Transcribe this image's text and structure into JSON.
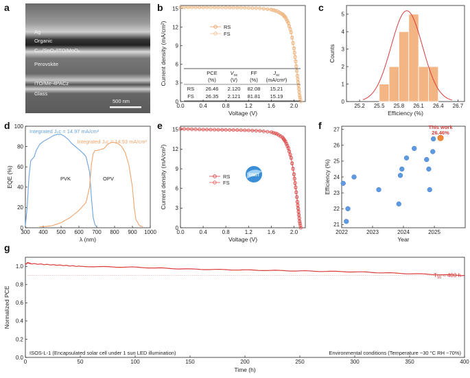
{
  "panels": {
    "a": "a",
    "b": "b",
    "c": "c",
    "d": "d",
    "e": "e",
    "f": "f",
    "g": "g"
  },
  "colors": {
    "orange": "#f0a36a",
    "orange_bar": "#f4b584",
    "red": "#d93a3a",
    "blue": "#6aa3de",
    "blue_dot": "#5f9ae0",
    "orange_dot": "#f08a3a"
  },
  "sem": {
    "layers": [
      "Ag",
      "Organic",
      "C₆₀/SnOₓ/ITO/MoOₓ",
      "Perovskite",
      "ITO/Me-4PACz",
      "Glass"
    ],
    "scale_bar": "500 nm"
  },
  "logo_text": "SIMIT",
  "chart_data": [
    {
      "id": "b",
      "type": "line",
      "xlabel": "Voltage (V)",
      "ylabel": "Current density (mA/cm²)",
      "xlim": [
        0,
        2.2
      ],
      "ylim": [
        0,
        15.5
      ],
      "xticks": [
        0.0,
        0.4,
        0.8,
        1.2,
        1.6,
        2.0
      ],
      "xticklabels": [
        "0.0",
        "0.4",
        "0.8",
        "1.2",
        "1.6",
        "2.0"
      ],
      "yticks": [
        0,
        3,
        6,
        9,
        12,
        15
      ],
      "yticklabels": [
        "0",
        "3",
        "6",
        "9",
        "12",
        "15"
      ],
      "legend_position": "center",
      "series": [
        {
          "name": "RS",
          "marker": "open-circle",
          "x": [
            0,
            0.2,
            0.4,
            0.6,
            0.8,
            1.0,
            1.2,
            1.4,
            1.6,
            1.7,
            1.8,
            1.85,
            1.9,
            1.95,
            2.0,
            2.03,
            2.06,
            2.08,
            2.1,
            2.12
          ],
          "y": [
            15.21,
            15.2,
            15.19,
            15.18,
            15.17,
            15.15,
            15.12,
            15.05,
            14.85,
            14.6,
            14.1,
            13.6,
            12.7,
            11.2,
            8.6,
            6.5,
            4.2,
            2.6,
            1.0,
            0.0
          ]
        },
        {
          "name": "FS",
          "marker": "open-circle",
          "x": [
            0,
            0.2,
            0.4,
            0.6,
            0.8,
            1.0,
            1.2,
            1.4,
            1.6,
            1.7,
            1.8,
            1.85,
            1.9,
            1.95,
            2.0,
            2.03,
            2.06,
            2.08,
            2.1,
            2.121
          ],
          "y": [
            15.19,
            15.18,
            15.17,
            15.16,
            15.15,
            15.13,
            15.1,
            15.02,
            14.8,
            14.55,
            14.0,
            13.5,
            12.6,
            11.1,
            8.5,
            6.4,
            4.1,
            2.5,
            0.9,
            0.0
          ]
        }
      ],
      "table": {
        "headers": [
          "",
          "PCE (%)",
          "Vₒᴄ (V)",
          "FF (%)",
          "Jₛᴄ (mA/cm²)"
        ],
        "header_line1": [
          "",
          "PCE",
          "V",
          "FF",
          "J"
        ],
        "header_sub": [
          "",
          "",
          "oc",
          "",
          "sc"
        ],
        "header_line2": [
          "",
          "(%)",
          "(V)",
          "(%)",
          "(mA/cm²)"
        ],
        "rows": [
          [
            "RS",
            "26.46",
            "2.120",
            "82.08",
            "15.21"
          ],
          [
            "FS",
            "26.35",
            "2.121",
            "81.81",
            "15.19"
          ]
        ]
      }
    },
    {
      "id": "c",
      "type": "bar",
      "xlabel": "Efficiency (%)",
      "ylabel": "Counts",
      "xlim": [
        25.0,
        26.8
      ],
      "ylim": [
        0,
        5.5
      ],
      "xticks": [
        25.2,
        25.5,
        25.8,
        26.1,
        26.4,
        26.7
      ],
      "xticklabels": [
        "25.2",
        "25.5",
        "25.8",
        "26.1",
        "26.4",
        "26.7"
      ],
      "yticks": [
        0,
        1,
        2,
        3,
        4,
        5
      ],
      "yticklabels": [
        "0",
        "1",
        "2",
        "3",
        "4",
        "5"
      ],
      "bin_width": 0.15,
      "bins": [
        25.35,
        25.5,
        25.65,
        25.8,
        25.95,
        26.1,
        26.25
      ],
      "values": [
        0,
        1,
        2,
        4,
        5,
        2,
        2
      ],
      "bins_actual_centers": [
        25.425,
        25.575,
        25.725,
        25.875,
        26.025,
        26.175,
        26.325
      ],
      "fit": {
        "type": "gaussian",
        "mean": 25.92,
        "sigma": 0.24,
        "amplitude": 5.2
      }
    },
    {
      "id": "d",
      "type": "line",
      "xlabel": "λ (nm)",
      "ylabel": "EQE (%)",
      "xlim": [
        300,
        1000
      ],
      "ylim": [
        0,
        100
      ],
      "xticks": [
        300,
        400,
        500,
        600,
        700,
        800,
        900,
        1000
      ],
      "xticklabels": [
        "300",
        "400",
        "500",
        "600",
        "700",
        "800",
        "900",
        "1000"
      ],
      "yticks": [
        0,
        20,
        40,
        60,
        80,
        100
      ],
      "yticklabels": [
        "0",
        "20",
        "40",
        "60",
        "80",
        "100"
      ],
      "annotations": [
        "Integrated Jₛᴄ = 14.97 mA/cm²",
        "Integrated Jₛᴄ = 14.93 mA/cm²"
      ],
      "series": [
        {
          "name": "PVK",
          "x": [
            300,
            310,
            320,
            330,
            340,
            350,
            360,
            380,
            400,
            420,
            440,
            460,
            480,
            500,
            520,
            540,
            560,
            580,
            600,
            620,
            640,
            660,
            670,
            680,
            690,
            700
          ],
          "y": [
            2,
            20,
            50,
            66,
            68,
            70,
            76,
            82,
            85,
            87,
            89,
            91,
            92,
            92,
            90,
            87,
            83,
            80,
            77,
            74,
            70,
            55,
            30,
            10,
            3,
            1
          ]
        },
        {
          "name": "OPV",
          "x": [
            380,
            400,
            450,
            500,
            550,
            600,
            620,
            640,
            660,
            670,
            680,
            690,
            700,
            720,
            740,
            760,
            780,
            800,
            820,
            840,
            860,
            880,
            900,
            910,
            920,
            940,
            960
          ],
          "y": [
            1,
            1,
            2,
            5,
            10,
            17,
            21,
            25,
            40,
            62,
            73,
            76,
            76,
            77,
            78,
            82,
            84,
            84,
            83,
            80,
            74,
            62,
            40,
            20,
            8,
            2,
            1
          ]
        }
      ]
    },
    {
      "id": "e",
      "type": "line",
      "xlabel": "Voltage (V)",
      "ylabel": "Current density (mA/cm²)",
      "xlim": [
        0,
        2.2
      ],
      "ylim": [
        0,
        15.5
      ],
      "xticks": [
        0.0,
        0.4,
        0.8,
        1.2,
        1.6,
        2.0
      ],
      "xticklabels": [
        "0.0",
        "0.4",
        "0.8",
        "1.2",
        "1.6",
        "2.0"
      ],
      "yticks": [
        0,
        3,
        6,
        9,
        12,
        15
      ],
      "yticklabels": [
        "0",
        "3",
        "6",
        "9",
        "12",
        "15"
      ],
      "series": [
        {
          "name": "RS",
          "marker": "open-circle",
          "x": [
            0,
            0.2,
            0.4,
            0.6,
            0.8,
            1.0,
            1.2,
            1.4,
            1.6,
            1.7,
            1.8,
            1.85,
            1.9,
            1.95,
            2.0,
            2.03,
            2.06,
            2.08,
            2.1,
            2.12
          ],
          "y": [
            15.1,
            15.05,
            15.0,
            14.98,
            14.95,
            14.92,
            14.88,
            14.8,
            14.6,
            14.35,
            13.8,
            13.2,
            12.2,
            10.7,
            8.2,
            6.2,
            4.0,
            2.5,
            1.0,
            0.0
          ]
        },
        {
          "name": "FS",
          "marker": "open-circle",
          "x": [
            0,
            0.2,
            0.4,
            0.6,
            0.8,
            1.0,
            1.2,
            1.4,
            1.6,
            1.7,
            1.8,
            1.85,
            1.9,
            1.95,
            2.0,
            2.03,
            2.06,
            2.08,
            2.1,
            2.12
          ],
          "y": [
            15.08,
            15.03,
            14.98,
            14.96,
            14.93,
            14.9,
            14.86,
            14.78,
            14.58,
            14.3,
            13.75,
            13.1,
            12.1,
            10.6,
            8.1,
            6.1,
            3.9,
            2.4,
            0.9,
            0.0
          ]
        }
      ]
    },
    {
      "id": "f",
      "type": "scatter",
      "xlabel": "Year",
      "ylabel": "Efficiency (%)",
      "xlim": [
        2022,
        2026
      ],
      "ylim": [
        20.8,
        27.2
      ],
      "xticks": [
        2022,
        2023,
        2024,
        2025
      ],
      "xticklabels": [
        "2022",
        "2023",
        "2024",
        "2025"
      ],
      "yticks": [
        21,
        22,
        23,
        24,
        25,
        26,
        27
      ],
      "yticklabels": [
        "21",
        "22",
        "23",
        "24",
        "25",
        "26",
        "27"
      ],
      "points": [
        {
          "x": 2022.05,
          "y": 23.6
        },
        {
          "x": 2022.15,
          "y": 21.2
        },
        {
          "x": 2022.2,
          "y": 22.0
        },
        {
          "x": 2022.4,
          "y": 24.0
        },
        {
          "x": 2023.2,
          "y": 23.2
        },
        {
          "x": 2023.85,
          "y": 22.3
        },
        {
          "x": 2023.9,
          "y": 24.1
        },
        {
          "x": 2023.95,
          "y": 24.5
        },
        {
          "x": 2024.1,
          "y": 25.2
        },
        {
          "x": 2024.35,
          "y": 25.8
        },
        {
          "x": 2024.75,
          "y": 25.1
        },
        {
          "x": 2024.82,
          "y": 24.5
        },
        {
          "x": 2024.85,
          "y": 23.2
        },
        {
          "x": 2024.95,
          "y": 25.6
        },
        {
          "x": 2024.97,
          "y": 26.4
        }
      ],
      "highlight": {
        "x": 2025.2,
        "y": 26.46,
        "label_line1": "This work",
        "label_line2": "26.46%"
      }
    },
    {
      "id": "g",
      "type": "line",
      "xlabel": "Time (h)",
      "ylabel": "Normalized PCE",
      "xlim": [
        0,
        400
      ],
      "ylim": [
        0,
        1.1
      ],
      "xticks": [
        0,
        50,
        100,
        150,
        200,
        250,
        300,
        350,
        400
      ],
      "xticklabels": [
        "0",
        "50",
        "100",
        "150",
        "200",
        "250",
        "300",
        "350",
        "400"
      ],
      "yticks": [
        0.0,
        0.2,
        0.4,
        0.6,
        0.8,
        1.0
      ],
      "yticklabels": [
        "0.0",
        "0.2",
        "0.4",
        "0.6",
        "0.8",
        "1.0"
      ],
      "reference_line": 0.9,
      "series": [
        {
          "name": "",
          "x": [
            0,
            2,
            5,
            20,
            50,
            100,
            150,
            200,
            250,
            300,
            350,
            400
          ],
          "y": [
            1.02,
            1.04,
            1.03,
            1.02,
            1.0,
            0.99,
            0.97,
            0.96,
            0.95,
            0.94,
            0.92,
            0.9
          ]
        }
      ],
      "annotation_t90": "T₉₀ ≈ 400 h",
      "t90_main": "T",
      "t90_sub": "90",
      "t90_rest": " ≈ 400 h",
      "caption_left": "ISOS-L-1 (Encapsulated solar cell under 1 sun LED illumination)",
      "caption_right": "Environmental conditions  (Temperature ~30 °C   RH ~70%)"
    }
  ]
}
